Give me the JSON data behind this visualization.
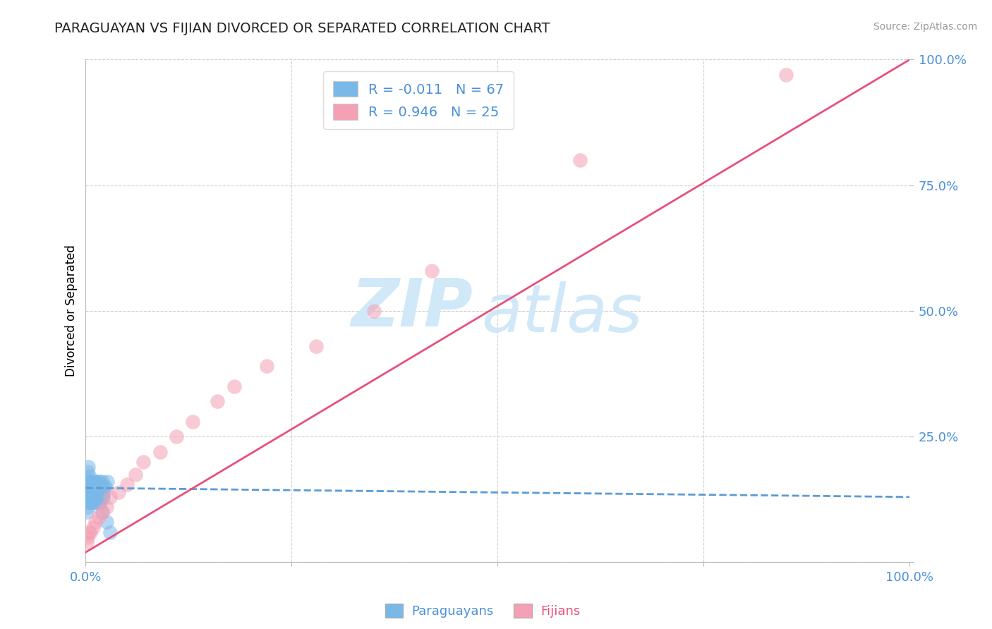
{
  "title": "PARAGUAYAN VS FIJIAN DIVORCED OR SEPARATED CORRELATION CHART",
  "source_text": "Source: ZipAtlas.com",
  "ylabel": "Divorced or Separated",
  "xlim": [
    0.0,
    1.0
  ],
  "ylim": [
    0.0,
    1.0
  ],
  "xticks": [
    0.0,
    0.25,
    0.5,
    0.75,
    1.0
  ],
  "yticks": [
    0.0,
    0.25,
    0.5,
    0.75,
    1.0
  ],
  "xtick_labels": [
    "0.0%",
    "",
    "",
    "",
    "100.0%"
  ],
  "ytick_labels": [
    "",
    "25.0%",
    "50.0%",
    "75.0%",
    "100.0%"
  ],
  "paraguayan_R": -0.011,
  "paraguayan_N": 67,
  "fijian_R": 0.946,
  "fijian_N": 25,
  "blue_color": "#7ab8e8",
  "pink_color": "#f4a0b5",
  "blue_line_color": "#5b9bd5",
  "pink_line_color": "#e8507a",
  "watermark_zip": "ZIP",
  "watermark_atlas": "atlas",
  "watermark_color": "#d0e8f8",
  "background_color": "#ffffff",
  "grid_color": "#cccccc",
  "axis_color": "#bbbbbb",
  "tick_label_color": "#4a90d9",
  "title_color": "#222222",
  "source_color": "#999999",
  "legend_text_color": "#4a90d9",
  "bottom_legend_blue_text": "Paraguayans",
  "bottom_legend_pink_text": "Fijians",
  "par_x": [
    0.0005,
    0.001,
    0.0015,
    0.002,
    0.0025,
    0.003,
    0.0035,
    0.004,
    0.0045,
    0.005,
    0.0055,
    0.006,
    0.0065,
    0.007,
    0.0075,
    0.008,
    0.0085,
    0.009,
    0.0095,
    0.01,
    0.0105,
    0.011,
    0.0115,
    0.012,
    0.0125,
    0.013,
    0.014,
    0.015,
    0.016,
    0.017,
    0.018,
    0.019,
    0.02,
    0.021,
    0.022,
    0.001,
    0.002,
    0.003,
    0.004,
    0.005,
    0.006,
    0.007,
    0.008,
    0.009,
    0.01,
    0.011,
    0.012,
    0.013,
    0.014,
    0.015,
    0.016,
    0.017,
    0.018,
    0.02,
    0.022,
    0.024,
    0.026,
    0.002,
    0.003,
    0.005,
    0.007,
    0.009,
    0.012,
    0.015,
    0.02,
    0.025,
    0.03
  ],
  "par_y": [
    0.155,
    0.14,
    0.16,
    0.13,
    0.15,
    0.12,
    0.14,
    0.16,
    0.13,
    0.15,
    0.12,
    0.14,
    0.16,
    0.13,
    0.15,
    0.12,
    0.14,
    0.16,
    0.13,
    0.15,
    0.12,
    0.14,
    0.16,
    0.13,
    0.15,
    0.12,
    0.14,
    0.16,
    0.13,
    0.15,
    0.12,
    0.14,
    0.16,
    0.13,
    0.15,
    0.1,
    0.11,
    0.12,
    0.13,
    0.14,
    0.15,
    0.16,
    0.12,
    0.13,
    0.14,
    0.15,
    0.16,
    0.12,
    0.13,
    0.14,
    0.15,
    0.16,
    0.12,
    0.13,
    0.14,
    0.15,
    0.16,
    0.18,
    0.19,
    0.17,
    0.16,
    0.15,
    0.14,
    0.13,
    0.1,
    0.08,
    0.06
  ],
  "fij_x": [
    0.001,
    0.002,
    0.004,
    0.006,
    0.009,
    0.012,
    0.016,
    0.02,
    0.025,
    0.03,
    0.04,
    0.05,
    0.06,
    0.07,
    0.09,
    0.11,
    0.13,
    0.16,
    0.18,
    0.22,
    0.28,
    0.35,
    0.42,
    0.6,
    0.85
  ],
  "fij_y": [
    0.04,
    0.05,
    0.06,
    0.06,
    0.07,
    0.08,
    0.09,
    0.1,
    0.11,
    0.13,
    0.14,
    0.155,
    0.175,
    0.2,
    0.22,
    0.25,
    0.28,
    0.32,
    0.35,
    0.39,
    0.43,
    0.5,
    0.58,
    0.8,
    0.97
  ],
  "blue_trend": [
    0.0,
    1.0,
    0.148,
    0.13
  ],
  "pink_trend_start_x": 0.0,
  "pink_trend_start_y": 0.02,
  "pink_trend_end_x": 1.0,
  "pink_trend_end_y": 1.0
}
